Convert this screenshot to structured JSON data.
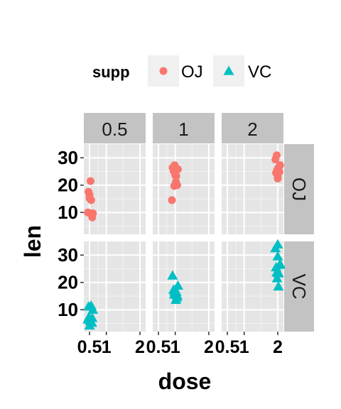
{
  "chart_data": {
    "type": "scatter",
    "facet_rows": [
      "OJ",
      "VC"
    ],
    "facet_cols": [
      "0.5",
      "1",
      "2"
    ],
    "xlabel": "dose",
    "ylabel": "len",
    "x_ticks": [
      "0.5",
      "1",
      "2"
    ],
    "y_ticks": [
      10,
      20,
      30
    ],
    "ylim": [
      2,
      35
    ],
    "xlim": [
      0.33,
      2.17
    ],
    "grid": true,
    "legend": {
      "title": "supp",
      "position": "top",
      "entries": [
        {
          "label": "OJ",
          "color": "#F8766D",
          "shape": "circle"
        },
        {
          "label": "VC",
          "color": "#00BFC4",
          "shape": "triangle"
        }
      ]
    },
    "series": [
      {
        "name": "OJ",
        "color": "#F8766D",
        "points": [
          {
            "dose": 0.5,
            "x": 0.5,
            "y": 15.2
          },
          {
            "dose": 0.5,
            "x": 0.53,
            "y": 21.5
          },
          {
            "dose": 0.5,
            "x": 0.47,
            "y": 17.6
          },
          {
            "dose": 0.5,
            "x": 0.52,
            "y": 9.7
          },
          {
            "dose": 0.5,
            "x": 0.55,
            "y": 14.5
          },
          {
            "dose": 0.5,
            "x": 0.45,
            "y": 10.0
          },
          {
            "dose": 0.5,
            "x": 0.58,
            "y": 8.2
          },
          {
            "dose": 0.5,
            "x": 0.56,
            "y": 9.4
          },
          {
            "dose": 0.5,
            "x": 0.5,
            "y": 16.5
          },
          {
            "dose": 0.5,
            "x": 0.6,
            "y": 9.7
          },
          {
            "dose": 1,
            "x": 0.97,
            "y": 19.7
          },
          {
            "dose": 1,
            "x": 1.03,
            "y": 23.3
          },
          {
            "dose": 1,
            "x": 1.0,
            "y": 23.6
          },
          {
            "dose": 1,
            "x": 0.92,
            "y": 26.4
          },
          {
            "dose": 1,
            "x": 1.06,
            "y": 20.0
          },
          {
            "dose": 1,
            "x": 0.95,
            "y": 25.2
          },
          {
            "dose": 1,
            "x": 1.08,
            "y": 25.8
          },
          {
            "dose": 1,
            "x": 1.02,
            "y": 21.2
          },
          {
            "dose": 1,
            "x": 0.9,
            "y": 14.5
          },
          {
            "dose": 1,
            "x": 0.98,
            "y": 27.3
          },
          {
            "dose": 2,
            "x": 1.98,
            "y": 25.5
          },
          {
            "dose": 2,
            "x": 2.03,
            "y": 26.4
          },
          {
            "dose": 2,
            "x": 2.0,
            "y": 22.4
          },
          {
            "dose": 2,
            "x": 1.95,
            "y": 24.5
          },
          {
            "dose": 2,
            "x": 2.05,
            "y": 24.8
          },
          {
            "dose": 2,
            "x": 1.97,
            "y": 30.9
          },
          {
            "dose": 2,
            "x": 2.02,
            "y": 26.4
          },
          {
            "dose": 2,
            "x": 2.07,
            "y": 27.3
          },
          {
            "dose": 2,
            "x": 1.93,
            "y": 29.4
          },
          {
            "dose": 2,
            "x": 2.0,
            "y": 23.0
          }
        ]
      },
      {
        "name": "VC",
        "color": "#00BFC4",
        "points": [
          {
            "dose": 0.5,
            "x": 0.5,
            "y": 4.2
          },
          {
            "dose": 0.5,
            "x": 0.55,
            "y": 11.5
          },
          {
            "dose": 0.5,
            "x": 0.48,
            "y": 7.3
          },
          {
            "dose": 0.5,
            "x": 0.52,
            "y": 5.8
          },
          {
            "dose": 0.5,
            "x": 0.45,
            "y": 6.4
          },
          {
            "dose": 0.5,
            "x": 0.6,
            "y": 10.0
          },
          {
            "dose": 0.5,
            "x": 0.53,
            "y": 11.2
          },
          {
            "dose": 0.5,
            "x": 0.47,
            "y": 11.2
          },
          {
            "dose": 0.5,
            "x": 0.57,
            "y": 5.2
          },
          {
            "dose": 0.5,
            "x": 0.58,
            "y": 7.0
          },
          {
            "dose": 1,
            "x": 0.98,
            "y": 16.5
          },
          {
            "dose": 1,
            "x": 1.03,
            "y": 16.5
          },
          {
            "dose": 1,
            "x": 1.06,
            "y": 15.2
          },
          {
            "dose": 1,
            "x": 0.95,
            "y": 17.3
          },
          {
            "dose": 1,
            "x": 0.92,
            "y": 22.5
          },
          {
            "dose": 1,
            "x": 1.0,
            "y": 17.3
          },
          {
            "dose": 1,
            "x": 1.02,
            "y": 13.6
          },
          {
            "dose": 1,
            "x": 1.05,
            "y": 14.5
          },
          {
            "dose": 1,
            "x": 1.08,
            "y": 18.8
          },
          {
            "dose": 1,
            "x": 0.97,
            "y": 15.5
          },
          {
            "dose": 2,
            "x": 1.97,
            "y": 23.6
          },
          {
            "dose": 2,
            "x": 2.02,
            "y": 18.5
          },
          {
            "dose": 2,
            "x": 2.0,
            "y": 33.9
          },
          {
            "dose": 2,
            "x": 1.95,
            "y": 25.5
          },
          {
            "dose": 2,
            "x": 2.05,
            "y": 26.4
          },
          {
            "dose": 2,
            "x": 1.93,
            "y": 32.5
          },
          {
            "dose": 2,
            "x": 2.07,
            "y": 26.7
          },
          {
            "dose": 2,
            "x": 1.98,
            "y": 21.5
          },
          {
            "dose": 2,
            "x": 2.03,
            "y": 23.3
          },
          {
            "dose": 2,
            "x": 2.0,
            "y": 29.5
          }
        ]
      }
    ]
  },
  "colors": {
    "panel_background": "#E5E5E5",
    "grid_major": "#FFFFFF",
    "grid_minor": "#F2F2F2",
    "strip_background": "#C3C3C3",
    "legend_key_background": "#F0F0F0"
  }
}
